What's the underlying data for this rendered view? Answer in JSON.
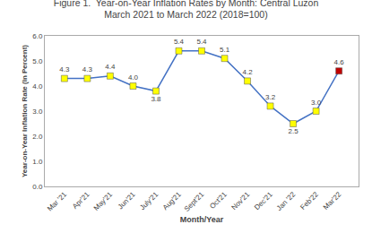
{
  "chart_data": {
    "type": "line",
    "title": "Figure 1.  Year-on-Year Inflation Rates by Month: Central Luzon",
    "subtitle": "March 2021 to March 2022 (2018=100)",
    "xlabel": "Month/Year",
    "ylabel": "Year-on-Year Inflation Rate (In Percent)",
    "categories": [
      "Mar '21",
      "Apr'21",
      "May'21",
      "Jun'21",
      "July'21",
      "Aug'21",
      "Sept'21",
      "Oct'21",
      "Nov'21",
      "Dec'21",
      "Jan '22",
      "Feb'22",
      "Mar'22"
    ],
    "values": [
      4.3,
      4.3,
      4.4,
      4.0,
      3.8,
      5.4,
      5.4,
      5.1,
      4.2,
      3.2,
      2.5,
      3.0,
      4.6
    ],
    "value_labels": [
      "4.3",
      "4.3",
      "4.4",
      "4.0",
      "3.8",
      "5.4",
      "5.4",
      "5.1",
      "4.2",
      "3.2",
      "2.5",
      "3.0",
      "4.6"
    ],
    "data_labels": true,
    "color": "#4472C4",
    "colors": [
      "#FFFF00",
      "#FFFF00",
      "#FFFF00",
      "#FFFF00",
      "#FFFF00",
      "#FFFF00",
      "#FFFF00",
      "#FFFF00",
      "#FFFF00",
      "#FFFF00",
      "#FFFF00",
      "#FFFF00",
      "#C00000"
    ],
    "marker": "square",
    "ylim": [
      0.0,
      6.0
    ],
    "yticks": [
      {
        "value": 0,
        "label": "0.0"
      },
      {
        "value": 1,
        "label": "1.0"
      },
      {
        "value": 2,
        "label": "2.0"
      },
      {
        "value": 3,
        "label": "3.0"
      },
      {
        "value": 4,
        "label": "4.0"
      },
      {
        "value": 5,
        "label": "5.0"
      },
      {
        "value": 6,
        "label": "6.0"
      }
    ],
    "grid": false
  }
}
